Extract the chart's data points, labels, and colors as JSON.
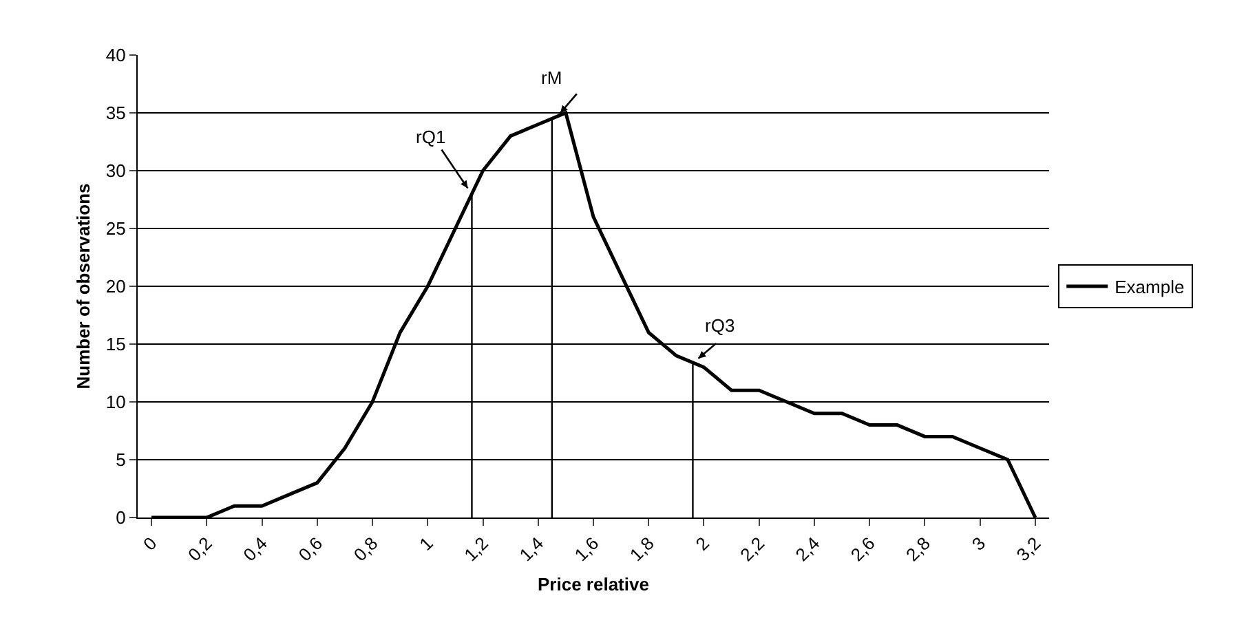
{
  "chart_data": {
    "type": "line",
    "xlabel": "Price relative",
    "ylabel": "Number of observations",
    "x": [
      0,
      0.1,
      0.2,
      0.3,
      0.4,
      0.5,
      0.6,
      0.7,
      0.8,
      0.9,
      1,
      1.1,
      1.2,
      1.3,
      1.4,
      1.5,
      1.6,
      1.7,
      1.8,
      1.9,
      2,
      2.1,
      2.2,
      2.3,
      2.4,
      2.5,
      2.6,
      2.7,
      2.8,
      2.9,
      3,
      3.1,
      3.2
    ],
    "series": [
      {
        "name": "Example",
        "color": "#000000",
        "values": [
          0,
          0,
          0,
          1,
          1,
          2,
          3,
          6,
          10,
          16,
          20,
          25,
          30,
          33,
          34,
          35,
          26,
          21,
          16,
          14,
          13,
          11,
          11,
          10,
          9,
          9,
          8,
          8,
          7,
          7,
          6,
          5,
          0
        ]
      }
    ],
    "xlim": [
      -0.05,
      3.25
    ],
    "xticks": [
      {
        "value": 0,
        "label": "0"
      },
      {
        "value": 0.2,
        "label": "0,2"
      },
      {
        "value": 0.4,
        "label": "0,4"
      },
      {
        "value": 0.6,
        "label": "0,6"
      },
      {
        "value": 0.8,
        "label": "0,8"
      },
      {
        "value": 1,
        "label": "1"
      },
      {
        "value": 1.2,
        "label": "1,2"
      },
      {
        "value": 1.4,
        "label": "1,4"
      },
      {
        "value": 1.6,
        "label": "1,6"
      },
      {
        "value": 1.8,
        "label": "1,8"
      },
      {
        "value": 2,
        "label": "2"
      },
      {
        "value": 2.2,
        "label": "2,2"
      },
      {
        "value": 2.4,
        "label": "2,4"
      },
      {
        "value": 2.6,
        "label": "2,6"
      },
      {
        "value": 2.8,
        "label": "2,8"
      },
      {
        "value": 3,
        "label": "3"
      },
      {
        "value": 3.2,
        "label": "3,2"
      }
    ],
    "ylim": [
      0,
      40
    ],
    "yticks": [
      0,
      5,
      10,
      15,
      20,
      25,
      30,
      35,
      40
    ],
    "ref_lines": [
      {
        "axis": "x",
        "value": 1.16,
        "label": "rQ1",
        "color": "#000000"
      },
      {
        "axis": "x",
        "value": 1.45,
        "label": "rM",
        "color": "#000000"
      },
      {
        "axis": "x",
        "value": 1.96,
        "label": "rQ3",
        "color": "#000000"
      }
    ],
    "grid": "y",
    "legend": "right",
    "marker": "none",
    "line_style": "solid"
  }
}
